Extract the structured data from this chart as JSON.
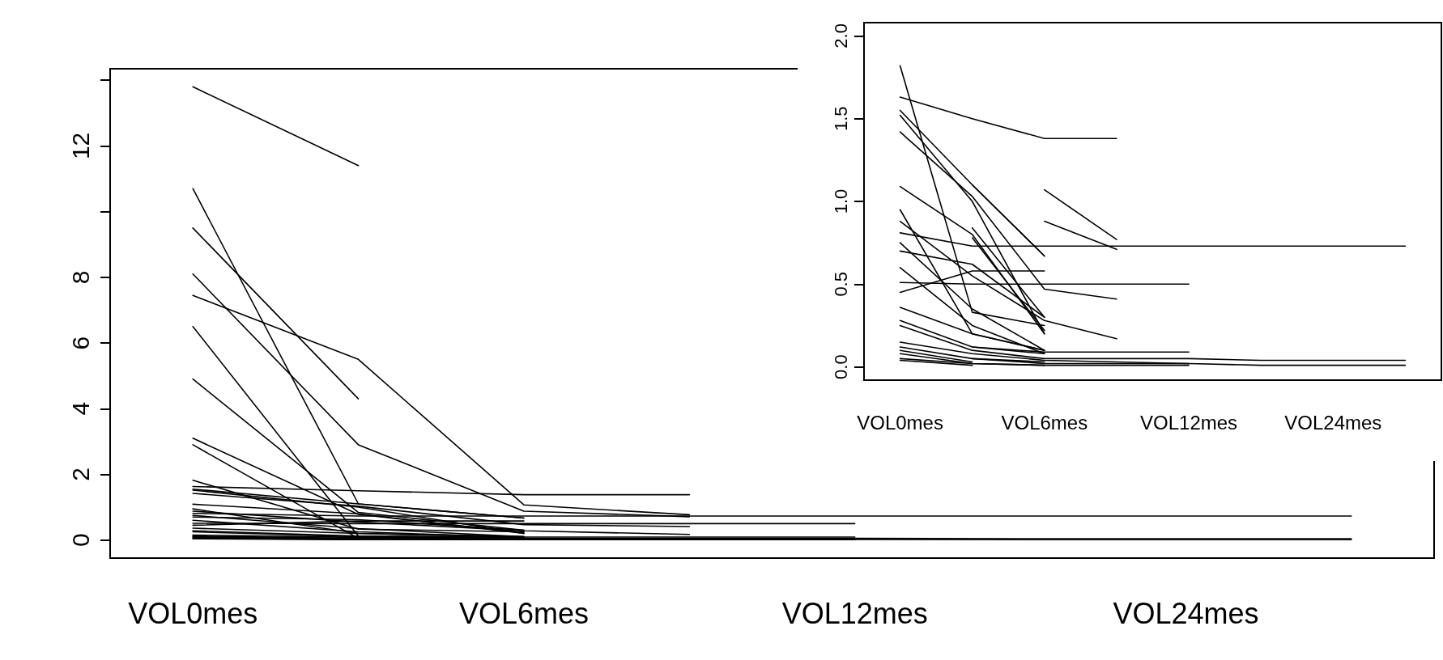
{
  "chart_data": [
    {
      "type": "line",
      "categories": [
        "VOL0mes",
        null,
        "VOL6mes",
        null,
        "VOL12mes",
        null,
        "VOL24mes",
        null
      ],
      "ylim": [
        -0.55,
        14.35
      ],
      "yticks": [
        0,
        2,
        4,
        6,
        8,
        {
          "value": 10,
          "label": null
        },
        12,
        {
          "value": 14,
          "label": null
        }
      ],
      "marker": "none",
      "line_style": "solid",
      "series": [
        {
          "color": "#000000",
          "values": [
            13.8,
            11.4,
            null,
            null,
            null,
            null,
            null,
            null
          ]
        },
        {
          "color": "#000000",
          "values": [
            10.7,
            1.1,
            0.67,
            null,
            null,
            null,
            null,
            null
          ]
        },
        {
          "color": "#000000",
          "values": [
            9.5,
            4.3,
            null,
            null,
            null,
            null,
            null,
            null
          ]
        },
        {
          "color": "#000000",
          "values": [
            8.1,
            2.9,
            0.88,
            0.71,
            null,
            null,
            null,
            null
          ]
        },
        {
          "color": "#000000",
          "values": [
            7.45,
            5.5,
            1.07,
            0.77,
            null,
            null,
            null,
            null
          ]
        },
        {
          "color": "#000000",
          "values": [
            6.5,
            0.12,
            0.08,
            null,
            null,
            null,
            null,
            null
          ]
        },
        {
          "color": "#000000",
          "values": [
            4.9,
            0.84,
            0.3,
            null,
            null,
            null,
            null,
            null
          ]
        },
        {
          "color": "#000000",
          "values": [
            3.1,
            0.78,
            0.22,
            null,
            null,
            null,
            null,
            null
          ]
        },
        {
          "color": "#000000",
          "values": [
            2.9,
            0.05,
            0.03,
            null,
            null,
            null,
            null,
            null
          ]
        },
        {
          "color": "#000000",
          "values": [
            1.63,
            1.5,
            1.38,
            1.38,
            null,
            null,
            null,
            null
          ]
        },
        {
          "color": "#000000",
          "values": [
            1.82,
            0.33,
            0.25,
            null,
            null,
            null,
            null,
            null
          ]
        },
        {
          "color": "#000000",
          "values": [
            1.55,
            1.1,
            0.67,
            null,
            null,
            null,
            null,
            null
          ]
        },
        {
          "color": "#000000",
          "values": [
            1.52,
            1.0,
            0.2,
            null,
            null,
            null,
            null,
            null
          ]
        },
        {
          "color": "#000000",
          "values": [
            1.42,
            1.03,
            0.47,
            0.41,
            null,
            null,
            null,
            null
          ]
        },
        {
          "color": "#000000",
          "values": [
            1.09,
            0.8,
            0.2,
            null,
            null,
            null,
            null,
            null
          ]
        },
        {
          "color": "#000000",
          "values": [
            0.95,
            0.2,
            0.1,
            null,
            null,
            null,
            null,
            null
          ]
        },
        {
          "color": "#000000",
          "values": [
            0.88,
            0.55,
            0.28,
            0.17,
            null,
            null,
            null,
            null
          ]
        },
        {
          "color": "#000000",
          "values": [
            0.81,
            0.73,
            0.73,
            0.73,
            0.73,
            0.73,
            0.73,
            0.73
          ]
        },
        {
          "color": "#000000",
          "values": [
            0.75,
            0.35,
            0.1,
            null,
            null,
            null,
            null,
            null
          ]
        },
        {
          "color": "#000000",
          "values": [
            0.7,
            0.62,
            0.3,
            null,
            null,
            null,
            null,
            null
          ]
        },
        {
          "color": "#000000",
          "values": [
            0.6,
            0.25,
            0.08,
            null,
            null,
            null,
            null,
            null
          ]
        },
        {
          "color": "#000000",
          "values": [
            0.51,
            0.5,
            0.5,
            0.5,
            0.5,
            null,
            null,
            null
          ]
        },
        {
          "color": "#000000",
          "values": [
            0.45,
            0.58,
            0.58,
            null,
            null,
            null,
            null,
            null
          ]
        },
        {
          "color": "#000000",
          "values": [
            0.36,
            0.2,
            0.1,
            null,
            null,
            null,
            null,
            null
          ]
        },
        {
          "color": "#000000",
          "values": [
            0.28,
            0.12,
            0.09,
            0.09,
            0.09,
            null,
            null,
            null
          ]
        },
        {
          "color": "#000000",
          "values": [
            0.25,
            0.1,
            0.05,
            0.05,
            0.05,
            0.04,
            0.04,
            0.04
          ]
        },
        {
          "color": "#000000",
          "values": [
            0.15,
            0.08,
            0.04,
            0.03,
            0.02,
            null,
            null,
            null
          ]
        },
        {
          "color": "#000000",
          "values": [
            0.12,
            0.05,
            0.02,
            0.02,
            0.02,
            0.01,
            0.01,
            0.01
          ]
        },
        {
          "color": "#000000",
          "values": [
            0.1,
            0.03,
            null,
            null,
            null,
            null,
            null,
            null
          ]
        },
        {
          "color": "#000000",
          "values": [
            0.08,
            0.02,
            0.01,
            0.01,
            0.01,
            null,
            null,
            null
          ]
        },
        {
          "color": "#000000",
          "values": [
            0.05,
            0.02,
            0.01,
            null,
            null,
            null,
            null,
            null
          ]
        },
        {
          "color": "#000000",
          "values": [
            0.04,
            0.01,
            null,
            null,
            null,
            null,
            null,
            null
          ]
        }
      ]
    },
    {
      "type": "line",
      "categories": [
        "VOL0mes",
        null,
        "VOL6mes",
        null,
        "VOL12mes",
        null,
        "VOL24mes",
        null
      ],
      "ylim": [
        -0.08,
        2.08
      ],
      "yticks": [
        {
          "value": 0,
          "label": "0.0"
        },
        {
          "value": 0.5,
          "label": "0.5"
        },
        {
          "value": 1,
          "label": "1.0"
        },
        {
          "value": 1.5,
          "label": "1.5"
        },
        {
          "value": 2,
          "label": "2.0"
        }
      ],
      "marker": "none",
      "line_style": "solid",
      "series": [
        {
          "color": "#000000",
          "values": [
            null,
            1.1,
            0.67,
            null,
            null,
            null,
            null,
            null
          ]
        },
        {
          "color": "#000000",
          "values": [
            null,
            null,
            0.88,
            0.71,
            null,
            null,
            null,
            null
          ]
        },
        {
          "color": "#000000",
          "values": [
            null,
            null,
            1.07,
            0.77,
            null,
            null,
            null,
            null
          ]
        },
        {
          "color": "#000000",
          "values": [
            null,
            0.12,
            0.08,
            null,
            null,
            null,
            null,
            null
          ]
        },
        {
          "color": "#000000",
          "values": [
            null,
            0.84,
            0.3,
            null,
            null,
            null,
            null,
            null
          ]
        },
        {
          "color": "#000000",
          "values": [
            null,
            0.78,
            0.22,
            null,
            null,
            null,
            null,
            null
          ]
        },
        {
          "color": "#000000",
          "values": [
            null,
            0.05,
            0.03,
            null,
            null,
            null,
            null,
            null
          ]
        },
        {
          "color": "#000000",
          "values": [
            1.63,
            1.5,
            1.38,
            1.38,
            null,
            null,
            null,
            null
          ]
        },
        {
          "color": "#000000",
          "values": [
            1.82,
            0.33,
            0.25,
            null,
            null,
            null,
            null,
            null
          ]
        },
        {
          "color": "#000000",
          "values": [
            1.55,
            1.1,
            0.67,
            null,
            null,
            null,
            null,
            null
          ]
        },
        {
          "color": "#000000",
          "values": [
            1.52,
            1.0,
            0.2,
            null,
            null,
            null,
            null,
            null
          ]
        },
        {
          "color": "#000000",
          "values": [
            1.42,
            1.03,
            0.47,
            0.41,
            null,
            null,
            null,
            null
          ]
        },
        {
          "color": "#000000",
          "values": [
            1.09,
            0.8,
            0.2,
            null,
            null,
            null,
            null,
            null
          ]
        },
        {
          "color": "#000000",
          "values": [
            0.95,
            0.2,
            0.1,
            null,
            null,
            null,
            null,
            null
          ]
        },
        {
          "color": "#000000",
          "values": [
            0.88,
            0.55,
            0.28,
            0.17,
            null,
            null,
            null,
            null
          ]
        },
        {
          "color": "#000000",
          "values": [
            0.81,
            0.73,
            0.73,
            0.73,
            0.73,
            0.73,
            0.73,
            0.73
          ]
        },
        {
          "color": "#000000",
          "values": [
            0.75,
            0.35,
            0.1,
            null,
            null,
            null,
            null,
            null
          ]
        },
        {
          "color": "#000000",
          "values": [
            0.7,
            0.62,
            0.3,
            null,
            null,
            null,
            null,
            null
          ]
        },
        {
          "color": "#000000",
          "values": [
            0.6,
            0.25,
            0.08,
            null,
            null,
            null,
            null,
            null
          ]
        },
        {
          "color": "#000000",
          "values": [
            0.51,
            0.5,
            0.5,
            0.5,
            0.5,
            null,
            null,
            null
          ]
        },
        {
          "color": "#000000",
          "values": [
            0.45,
            0.58,
            0.58,
            null,
            null,
            null,
            null,
            null
          ]
        },
        {
          "color": "#000000",
          "values": [
            0.36,
            0.2,
            0.1,
            null,
            null,
            null,
            null,
            null
          ]
        },
        {
          "color": "#000000",
          "values": [
            0.28,
            0.12,
            0.09,
            0.09,
            0.09,
            null,
            null,
            null
          ]
        },
        {
          "color": "#000000",
          "values": [
            0.25,
            0.1,
            0.05,
            0.05,
            0.05,
            0.04,
            0.04,
            0.04
          ]
        },
        {
          "color": "#000000",
          "values": [
            0.15,
            0.08,
            0.04,
            0.03,
            0.02,
            null,
            null,
            null
          ]
        },
        {
          "color": "#000000",
          "values": [
            0.12,
            0.05,
            0.02,
            0.02,
            0.02,
            0.01,
            0.01,
            0.01
          ]
        },
        {
          "color": "#000000",
          "values": [
            0.1,
            0.03,
            null,
            null,
            null,
            null,
            null,
            null
          ]
        },
        {
          "color": "#000000",
          "values": [
            0.08,
            0.02,
            0.01,
            0.01,
            0.01,
            null,
            null,
            null
          ]
        },
        {
          "color": "#000000",
          "values": [
            0.05,
            0.02,
            0.01,
            null,
            null,
            null,
            null,
            null
          ]
        },
        {
          "color": "#000000",
          "values": [
            0.04,
            0.01,
            null,
            null,
            null,
            null,
            null,
            null
          ]
        }
      ]
    }
  ]
}
